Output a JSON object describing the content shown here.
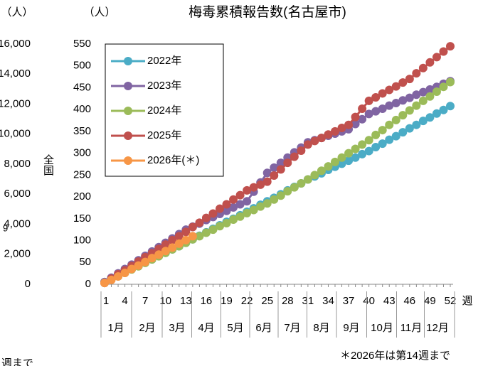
{
  "chart_data": {
    "type": "line",
    "title": "梅毒累積報告数(名古屋市)",
    "y_unit_label": "（人）",
    "x_axis_label": "週",
    "footnote": "＊2026年は第14週まで",
    "categories": [
      1,
      null,
      null,
      4,
      null,
      null,
      7,
      null,
      null,
      10,
      null,
      null,
      13,
      null,
      null,
      16,
      null,
      null,
      19,
      null,
      null,
      22,
      null,
      null,
      25,
      null,
      null,
      28,
      null,
      null,
      31,
      null,
      null,
      34,
      null,
      null,
      37,
      null,
      null,
      40,
      null,
      null,
      43,
      null,
      null,
      46,
      null,
      null,
      49,
      null,
      null,
      52
    ],
    "months": [
      "1月",
      "2月",
      "3月",
      "4月",
      "5月",
      "6月",
      "7月",
      "8月",
      "9月",
      "10月",
      "11月",
      "12月"
    ],
    "ylim": [
      0,
      550
    ],
    "yticks": [
      0,
      50,
      100,
      150,
      200,
      250,
      300,
      350,
      400,
      450,
      500,
      550
    ],
    "legend": "top-left",
    "series": [
      {
        "name": "2022年",
        "color": "#4bacc6",
        "values": [
          5,
          12,
          20,
          27,
          35,
          42,
          50,
          57,
          65,
          72,
          80,
          87,
          95,
          103,
          111,
          119,
          127,
          135,
          143,
          150,
          158,
          166,
          174,
          182,
          190,
          198,
          206,
          215,
          223,
          231,
          240,
          247,
          254,
          262,
          269,
          276,
          283,
          290,
          298,
          305,
          314,
          322,
          331,
          339,
          348,
          357,
          365,
          374,
          382,
          391,
          399,
          408
        ]
      },
      {
        "name": "2023年",
        "color": "#8064a2",
        "values": [
          5,
          15,
          25,
          35,
          45,
          55,
          65,
          75,
          85,
          95,
          105,
          115,
          125,
          132,
          139,
          147,
          154,
          161,
          168,
          176,
          183,
          190,
          212,
          233,
          255,
          267,
          278,
          290,
          302,
          313,
          325,
          330,
          335,
          340,
          345,
          350,
          355,
          367,
          378,
          390,
          396,
          402,
          409,
          415,
          421,
          427,
          434,
          440,
          446,
          452,
          459,
          465
        ]
      },
      {
        "name": "2024年",
        "color": "#9bbb59",
        "values": [
          3,
          11,
          18,
          26,
          34,
          41,
          49,
          57,
          64,
          72,
          80,
          87,
          95,
          103,
          110,
          118,
          125,
          133,
          140,
          148,
          155,
          163,
          170,
          178,
          185,
          194,
          203,
          213,
          222,
          231,
          240,
          250,
          260,
          270,
          280,
          290,
          300,
          310,
          320,
          330,
          342,
          353,
          365,
          376,
          387,
          398,
          409,
          420,
          430,
          441,
          452,
          463
        ]
      },
      {
        "name": "2025年",
        "color": "#c0504d",
        "values": [
          3,
          13,
          23,
          32,
          42,
          52,
          62,
          71,
          81,
          91,
          101,
          110,
          120,
          131,
          141,
          152,
          162,
          173,
          183,
          194,
          204,
          215,
          222,
          228,
          235,
          249,
          263,
          278,
          292,
          306,
          320,
          328,
          335,
          343,
          350,
          358,
          365,
          383,
          402,
          420,
          428,
          437,
          445,
          453,
          462,
          470,
          483,
          495,
          508,
          520,
          533,
          545
        ]
      },
      {
        "name": "2026年(＊)",
        "color": "#f79646",
        "values": [
          3,
          10,
          18,
          26,
          35,
          43,
          51,
          60,
          68,
          76,
          84,
          93,
          101,
          110,
          null,
          null,
          null,
          null,
          null,
          null,
          null,
          null,
          null,
          null,
          null,
          null,
          null,
          null,
          null,
          null,
          null,
          null,
          null,
          null,
          null,
          null,
          null,
          null,
          null,
          null,
          null,
          null,
          null,
          null,
          null,
          null,
          null,
          null,
          null,
          null,
          null,
          null
        ]
      }
    ]
  },
  "left_panel": {
    "unit_label": "（人）",
    "axis_label": "全国",
    "fragment": "9",
    "bottom_fragment": "週まで",
    "tick_labels": [
      "16,000",
      "14,000",
      "12,000",
      "10,000",
      "8,000",
      "6,000",
      "4,000",
      "2,000",
      "0"
    ]
  }
}
